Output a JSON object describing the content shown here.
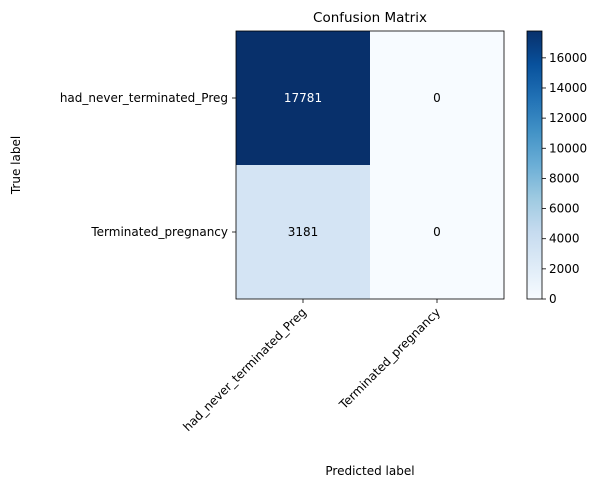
{
  "chart_data": {
    "type": "heatmap",
    "title": "Confusion Matrix",
    "xlabel": "Predicted label",
    "ylabel": "True label",
    "x_categories": [
      "had_never_terminated_Preg",
      "Terminated_pregnancy"
    ],
    "y_categories": [
      "had_never_terminated_Preg",
      "Terminated_pregnancy"
    ],
    "matrix": [
      [
        17781,
        0
      ],
      [
        3181,
        0
      ]
    ],
    "colormap": "Blues",
    "colorbar": {
      "range": [
        0,
        17781
      ],
      "ticks": [
        0,
        2000,
        4000,
        6000,
        8000,
        10000,
        12000,
        14000,
        16000
      ]
    },
    "colors": {
      "low": "#f7fbff",
      "high": "#08306b"
    }
  }
}
